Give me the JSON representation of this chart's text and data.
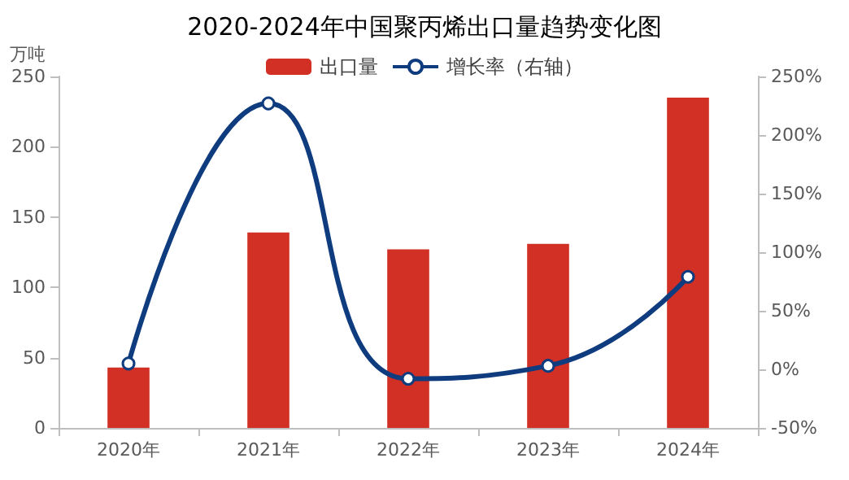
{
  "chart_data": {
    "type": "bar",
    "title": "2020-2024年中国聚丙烯出口量趋势变化图",
    "ylabel": "万吨",
    "categories": [
      "2020年",
      "2021年",
      "2022年",
      "2023年",
      "2024年"
    ],
    "series": [
      {
        "name": "出口量",
        "color": "#d22f25",
        "values": [
          43,
          139,
          127,
          131,
          235
        ]
      },
      {
        "name": "增长率（右轴）",
        "type": "line",
        "axis": "y2",
        "color": "#0f3c7f",
        "marker": "circle",
        "values": [
          5,
          227,
          -8,
          3,
          79
        ]
      }
    ],
    "ylim": [
      0,
      250
    ],
    "yticks": [
      0,
      50,
      100,
      150,
      200,
      250
    ],
    "y2lim": [
      -50,
      250
    ],
    "y2ticks": [
      {
        "value": -50,
        "label": "-50%"
      },
      {
        "value": 0,
        "label": "0%"
      },
      {
        "value": 50,
        "label": "50%"
      },
      {
        "value": 100,
        "label": "100%"
      },
      {
        "value": 150,
        "label": "150%"
      },
      {
        "value": 200,
        "label": "200%"
      },
      {
        "value": 250,
        "label": "250%"
      }
    ],
    "grid": false,
    "legend": "top"
  }
}
